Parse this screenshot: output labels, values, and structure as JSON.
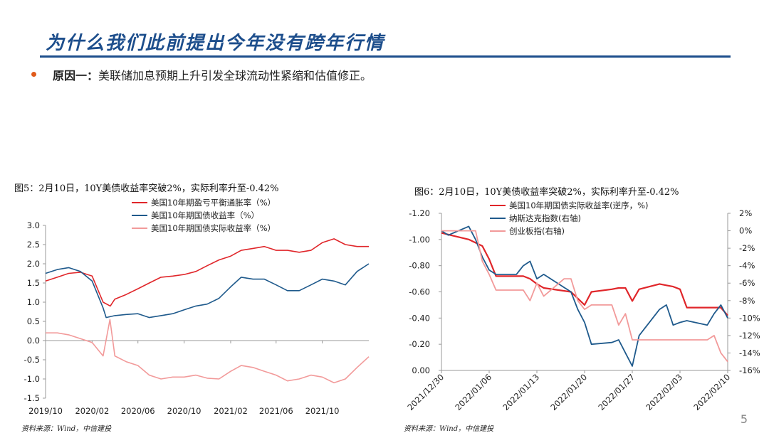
{
  "slide": {
    "title": "为什么我们此前提出今年没有跨年行情",
    "bullet_label": "原因一：",
    "bullet_text": "美联储加息预期上升引发全球流动性紧缩和估值修正。",
    "page_number": "5",
    "accent_color": "#1d4e8c",
    "bullet_color": "#e05a1a"
  },
  "chart_data": [
    {
      "type": "line",
      "figure_title": "图5：2月10日，10Y美债收益率突破2%，实际利率升至-0.42%",
      "source": "资料来源：Wind，中信建投",
      "x_tick_labels": [
        "2019/10",
        "2020/02",
        "2020/06",
        "2020/10",
        "2021/02",
        "2021/06",
        "2021/10"
      ],
      "x_range": [
        "2019-10",
        "2022-02"
      ],
      "ylim": [
        -1.5,
        3.0
      ],
      "y_ticks": [
        "3.0",
        "2.5",
        "2.0",
        "1.5",
        "1.0",
        "0.5",
        "0.0",
        "-0.5",
        "-1.0",
        "-1.5"
      ],
      "grid": false,
      "legend_position": "top",
      "series": [
        {
          "name": "美国10年期盈亏平衡通胀率（%）",
          "color": "#e0262a",
          "x": [
            "2019-10",
            "2019-11",
            "2019-12",
            "2020-01",
            "2020-02",
            "2020-03",
            "2020-03-20",
            "2020-04",
            "2020-05",
            "2020-06",
            "2020-07",
            "2020-08",
            "2020-09",
            "2020-10",
            "2020-11",
            "2020-12",
            "2021-01",
            "2021-02",
            "2021-03",
            "2021-04",
            "2021-05",
            "2021-06",
            "2021-07",
            "2021-08",
            "2021-09",
            "2021-10",
            "2021-11",
            "2021-12",
            "2022-01",
            "2022-02"
          ],
          "y": [
            1.55,
            1.65,
            1.75,
            1.78,
            1.68,
            1.0,
            0.9,
            1.08,
            1.2,
            1.35,
            1.5,
            1.65,
            1.68,
            1.72,
            1.8,
            1.95,
            2.1,
            2.2,
            2.35,
            2.4,
            2.45,
            2.35,
            2.35,
            2.3,
            2.35,
            2.55,
            2.65,
            2.5,
            2.45,
            2.45
          ]
        },
        {
          "name": "美国10年期国债收益率（%）",
          "color": "#1f5a8c",
          "x": [
            "2019-10",
            "2019-11",
            "2019-12",
            "2020-01",
            "2020-02",
            "2020-03",
            "2020-03-09",
            "2020-04",
            "2020-05",
            "2020-06",
            "2020-07",
            "2020-08",
            "2020-09",
            "2020-10",
            "2020-11",
            "2020-12",
            "2021-01",
            "2021-02",
            "2021-03",
            "2021-04",
            "2021-05",
            "2021-06",
            "2021-07",
            "2021-08",
            "2021-09",
            "2021-10",
            "2021-11",
            "2021-12",
            "2022-01",
            "2022-02"
          ],
          "y": [
            1.75,
            1.85,
            1.9,
            1.8,
            1.55,
            0.85,
            0.6,
            0.65,
            0.68,
            0.7,
            0.6,
            0.65,
            0.7,
            0.8,
            0.9,
            0.95,
            1.1,
            1.4,
            1.65,
            1.6,
            1.6,
            1.45,
            1.3,
            1.3,
            1.45,
            1.6,
            1.55,
            1.45,
            1.8,
            2.0
          ]
        },
        {
          "name": "美国10年期国债实际收益率（%）",
          "color": "#f29a9a",
          "x": [
            "2019-10",
            "2019-11",
            "2019-12",
            "2020-01",
            "2020-02",
            "2020-03",
            "2020-03-19",
            "2020-04",
            "2020-05",
            "2020-06",
            "2020-07",
            "2020-08",
            "2020-09",
            "2020-10",
            "2020-11",
            "2020-12",
            "2021-01",
            "2021-02",
            "2021-03",
            "2021-04",
            "2021-05",
            "2021-06",
            "2021-07",
            "2021-08",
            "2021-09",
            "2021-10",
            "2021-11",
            "2021-12",
            "2022-01",
            "2022-02"
          ],
          "y": [
            0.2,
            0.2,
            0.15,
            0.05,
            -0.05,
            -0.4,
            0.55,
            -0.4,
            -0.55,
            -0.65,
            -0.9,
            -1.0,
            -0.95,
            -0.95,
            -0.9,
            -0.98,
            -1.0,
            -0.8,
            -0.65,
            -0.7,
            -0.8,
            -0.9,
            -1.05,
            -1.0,
            -0.9,
            -0.95,
            -1.1,
            -1.0,
            -0.7,
            -0.42
          ]
        }
      ]
    },
    {
      "type": "line",
      "figure_title": "图6：2月10日，10Y美债收益率突破2%，实际利率升至-0.42%",
      "source": "资料来源：Wind，中信建投",
      "categories": [
        "2021/12/30",
        "2022/01/06",
        "2022/01/13",
        "2022/01/20",
        "2022/01/27",
        "2022/02/03",
        "2022/02/10"
      ],
      "x_range": [
        "2021-12-30",
        "2022-02-10"
      ],
      "ylim_left": [
        0.0,
        -1.2
      ],
      "y_ticks_left": [
        "-1.20",
        "-1.00",
        "-0.80",
        "-0.60",
        "-0.40",
        "-0.20",
        "0.00"
      ],
      "ylim_right": [
        2,
        -16
      ],
      "y_ticks_right": [
        "2%",
        "0%",
        "-2%",
        "-4%",
        "-6%",
        "-8%",
        "-10%",
        "-12%",
        "-14%",
        "-16%"
      ],
      "left_axis_reversed": true,
      "grid": false,
      "legend_position": "top",
      "series": [
        {
          "name": "美国10年期国债实际收益率(逆序，%)",
          "color": "#e0262a",
          "axis": "left",
          "x": [
            "2021-12-30",
            "2022-01-03",
            "2022-01-05",
            "2022-01-06",
            "2022-01-07",
            "2022-01-10",
            "2022-01-11",
            "2022-01-12",
            "2022-01-13",
            "2022-01-14",
            "2022-01-18",
            "2022-01-19",
            "2022-01-20",
            "2022-01-21",
            "2022-01-24",
            "2022-01-25",
            "2022-01-26",
            "2022-01-27",
            "2022-01-28",
            "2022-01-31",
            "2022-02-01",
            "2022-02-02",
            "2022-02-03",
            "2022-02-04",
            "2022-02-07",
            "2022-02-08",
            "2022-02-09",
            "2022-02-10"
          ],
          "y": [
            -1.05,
            -1.0,
            -0.95,
            -0.85,
            -0.72,
            -0.72,
            -0.72,
            -0.7,
            -0.66,
            -0.63,
            -0.6,
            -0.55,
            -0.5,
            -0.6,
            -0.62,
            -0.63,
            -0.63,
            -0.53,
            -0.62,
            -0.66,
            -0.65,
            -0.64,
            -0.62,
            -0.48,
            -0.48,
            -0.48,
            -0.48,
            -0.42
          ]
        },
        {
          "name": "纳斯达克指数(右轴)",
          "color": "#1f5a8c",
          "axis": "right",
          "x": [
            "2021-12-30",
            "2021-12-31",
            "2022-01-03",
            "2022-01-04",
            "2022-01-05",
            "2022-01-06",
            "2022-01-07",
            "2022-01-10",
            "2022-01-11",
            "2022-01-12",
            "2022-01-13",
            "2022-01-14",
            "2022-01-18",
            "2022-01-19",
            "2022-01-20",
            "2022-01-21",
            "2022-01-24",
            "2022-01-25",
            "2022-01-26",
            "2022-01-27",
            "2022-01-28",
            "2022-01-31",
            "2022-02-01",
            "2022-02-02",
            "2022-02-03",
            "2022-02-04",
            "2022-02-07",
            "2022-02-08",
            "2022-02-09",
            "2022-02-10"
          ],
          "y": [
            0,
            -0.5,
            0.5,
            -1,
            -3,
            -4.5,
            -5,
            -5,
            -4,
            -3.5,
            -5.5,
            -5,
            -7,
            -9,
            -10.5,
            -13,
            -12.8,
            -12.5,
            -14,
            -15.5,
            -12,
            -9,
            -8.5,
            -10.8,
            -10.5,
            -10.3,
            -10.8,
            -9.5,
            -8.5,
            -10
          ]
        },
        {
          "name": "创业板指(右轴)",
          "color": "#f29a9a",
          "axis": "right",
          "x": [
            "2021-12-30",
            "2021-12-31",
            "2022-01-04",
            "2022-01-05",
            "2022-01-06",
            "2022-01-07",
            "2022-01-10",
            "2022-01-11",
            "2022-01-12",
            "2022-01-13",
            "2022-01-14",
            "2022-01-17",
            "2022-01-18",
            "2022-01-19",
            "2022-01-20",
            "2022-01-21",
            "2022-01-24",
            "2022-01-25",
            "2022-01-26",
            "2022-01-27",
            "2022-01-28",
            "2022-02-07",
            "2022-02-08",
            "2022-02-09",
            "2022-02-10"
          ],
          "y": [
            0,
            0,
            0,
            -3.5,
            -5,
            -6.8,
            -6.8,
            -6.8,
            -8,
            -6,
            -7.5,
            -5.5,
            -5.5,
            -8,
            -9,
            -8.5,
            -8.5,
            -10.8,
            -9.5,
            -12.5,
            -12.5,
            -12.5,
            -12,
            -14,
            -15
          ]
        }
      ]
    }
  ]
}
